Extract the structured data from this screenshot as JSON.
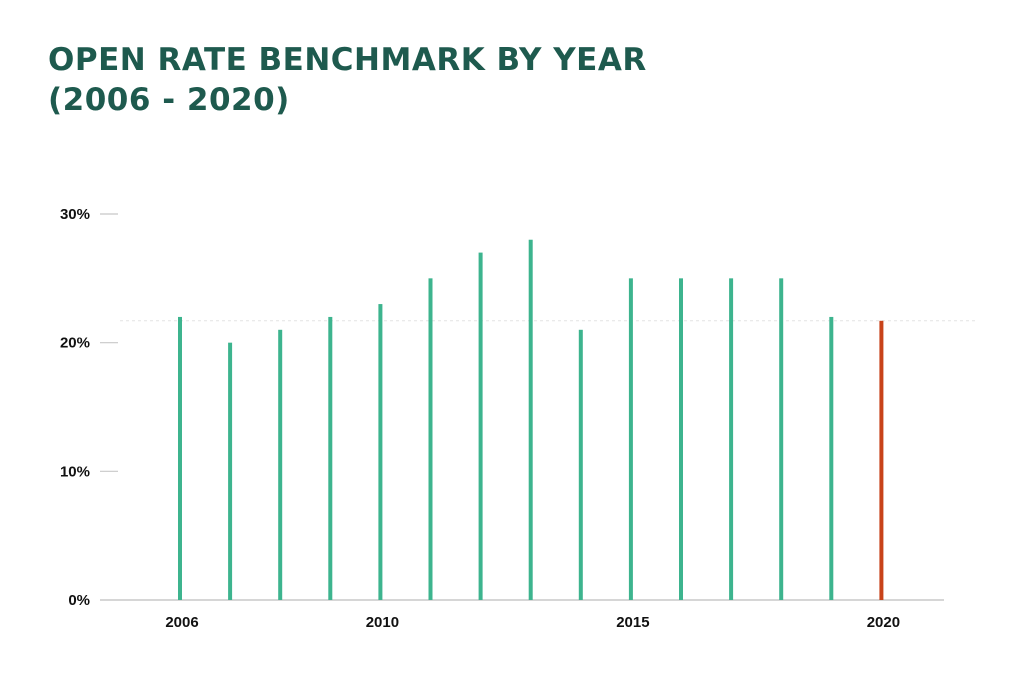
{
  "title_line1": "OPEN RATE BENCHMARK BY YEAR",
  "title_line2": "(2006 - 2020)",
  "chart_data": {
    "type": "bar",
    "title": "OPEN RATE BENCHMARK BY YEAR (2006 - 2020)",
    "xlabel": "",
    "ylabel": "",
    "x": [
      2006,
      2007,
      2008,
      2009,
      2010,
      2011,
      2012,
      2013,
      2014,
      2015,
      2016,
      2017,
      2018,
      2019,
      2020
    ],
    "values": [
      22,
      20,
      21,
      22,
      23,
      25,
      27,
      28,
      21,
      25,
      25,
      25,
      25,
      22,
      21.7
    ],
    "value_unit": "%",
    "ylim": [
      0,
      30
    ],
    "yticks": [
      0,
      10,
      20,
      30
    ],
    "ytick_labels": [
      "0%",
      "10%",
      "20%",
      "30%"
    ],
    "xticks": [
      2006,
      2010,
      2015,
      2020
    ],
    "xtick_labels": [
      "2006",
      "2010",
      "2015",
      "2020"
    ],
    "reference_line": 21.7,
    "colors": {
      "bar": "#3db48e",
      "highlight": "#c8431a",
      "title": "#1e5a4e",
      "axis": "#c8c8c8",
      "reference": "#e4e4e4"
    },
    "highlight_year": 2020,
    "grid": false,
    "legend": "none"
  }
}
